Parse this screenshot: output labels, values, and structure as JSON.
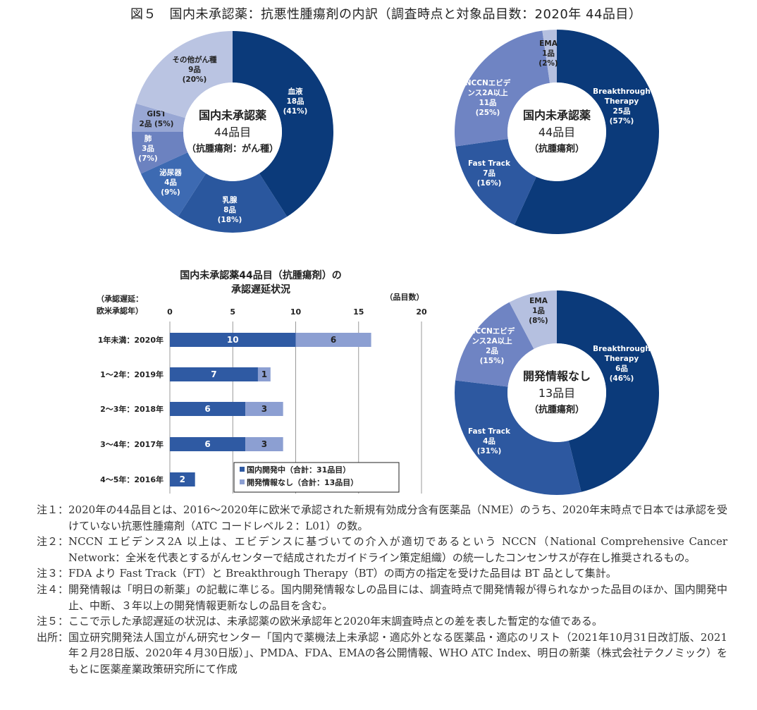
{
  "title": "図５　国内未承認薬：抗悪性腫瘍剤の内訳（調査時点と対象品目数：2020年 44品目）",
  "chart_data": [
    {
      "type": "pie",
      "variant": "donut",
      "center_label": [
        "国内未承認薬",
        "44品目",
        "（抗腫瘍剤：がん種）"
      ],
      "slices": [
        {
          "label": [
            "血液",
            "18品",
            "(41%)"
          ],
          "value": 18,
          "percent": 41,
          "color": "#0b3a7a",
          "text_color": "#ffffff"
        },
        {
          "label": [
            "乳腺",
            "8品",
            "(18%)"
          ],
          "value": 8,
          "percent": 18,
          "color": "#2a579e",
          "text_color": "#ffffff"
        },
        {
          "label": [
            "泌尿器",
            "4品",
            "(9%)"
          ],
          "value": 4,
          "percent": 9,
          "color": "#3d6ab2",
          "text_color": "#ffffff"
        },
        {
          "label": [
            "肺",
            "3品",
            "(7%)"
          ],
          "value": 3,
          "percent": 7,
          "color": "#6c82c0",
          "text_color": "#ffffff"
        },
        {
          "label": [
            "GIST",
            "2品 (5%)"
          ],
          "value": 2,
          "percent": 5,
          "color": "#98a7d4",
          "text_color": "#222222"
        },
        {
          "label": [
            "その他がん種",
            "9品",
            "(20%)"
          ],
          "value": 9,
          "percent": 20,
          "color": "#bac4e2",
          "text_color": "#222222"
        }
      ]
    },
    {
      "type": "pie",
      "variant": "donut",
      "center_label": [
        "国内未承認薬",
        "44品目",
        "（抗腫瘍剤）"
      ],
      "slices": [
        {
          "label": [
            "Breakthrough",
            "Therapy",
            "25品",
            "(57%)"
          ],
          "value": 25,
          "percent": 57,
          "color": "#0b3a7a",
          "text_color": "#ffffff"
        },
        {
          "label": [
            "Fast Track",
            "7品",
            "(16%)"
          ],
          "value": 7,
          "percent": 16,
          "color": "#2d58a0",
          "text_color": "#ffffff"
        },
        {
          "label": [
            "NCCNエビデ",
            "ンス2A以上",
            "11品",
            "(25%)"
          ],
          "value": 11,
          "percent": 25,
          "color": "#6f84c3",
          "text_color": "#ffffff"
        },
        {
          "label": [
            "EMA",
            "1品",
            "(2%)"
          ],
          "value": 1,
          "percent": 2,
          "color": "#b5c0e0",
          "text_color": "#222222"
        }
      ]
    },
    {
      "type": "bar",
      "orientation": "horizontal",
      "stacked": true,
      "title": [
        "国内未承認薬44品目（抗腫瘍剤）の",
        "承認遅延状況"
      ],
      "ylabel": [
        "（承認遅延：",
        "欧米承認年）"
      ],
      "xlabel": "（品目数）",
      "xlim": [
        0,
        20
      ],
      "xticks": [
        0,
        5,
        10,
        15,
        20
      ],
      "grid": true,
      "categories": [
        "1年未満：2020年",
        "1～2年：2019年",
        "2～3年：2018年",
        "3～4年：2017年",
        "4～5年：2016年"
      ],
      "series": [
        {
          "name": "国内開発中（合計：31品目）",
          "values": [
            10,
            7,
            6,
            6,
            2
          ],
          "color": "#2f5aa3",
          "label_color": "#ffffff"
        },
        {
          "name": "開発情報なし（合計：13品目）",
          "values": [
            6,
            1,
            3,
            3,
            0
          ],
          "color": "#8c9fd2",
          "label_color": "#222222"
        }
      ],
      "legend_position": "bottom-right"
    },
    {
      "type": "pie",
      "variant": "donut",
      "center_label": [
        "開発情報なし",
        "13品目",
        "（抗腫瘍剤）"
      ],
      "slices": [
        {
          "label": [
            "Breakthrough",
            "Therapy",
            "6品",
            "(46%)"
          ],
          "value": 6,
          "percent": 46,
          "color": "#0b3a7a",
          "text_color": "#ffffff"
        },
        {
          "label": [
            "Fast Track",
            "4品",
            "(31%)"
          ],
          "value": 4,
          "percent": 31,
          "color": "#2d58a0",
          "text_color": "#ffffff"
        },
        {
          "label": [
            "NCCNエビデ",
            "ンス2A以上",
            "2品",
            "(15%)"
          ],
          "value": 2,
          "percent": 15,
          "color": "#6f84c3",
          "text_color": "#ffffff"
        },
        {
          "label": [
            "EMA",
            "1品",
            "(8%)"
          ],
          "value": 1,
          "percent": 8,
          "color": "#b5c0e0",
          "text_color": "#222222"
        }
      ]
    }
  ],
  "notes": [
    {
      "label": "注１：",
      "text": "2020年の44品目とは、2016～2020年に欧米で承認された新規有効成分含有医薬品（NME）のうち、2020年末時点で日本では承認を受けていない抗悪性腫瘍剤（ATC コードレベル２：L01）の数。"
    },
    {
      "label": "注２：",
      "text": "NCCN エビデンス2A 以上は、エビデンスに基づいての介入が適切であるという NCCN（National Comprehensive Cancer Network：全米を代表とするがんセンターで結成されたガイドライン策定組織）の統一したコンセンサスが存在し推奨されるもの。"
    },
    {
      "label": "注３：",
      "text": "FDA より Fast Track（FT）と Breakthrough Therapy（BT）の両方の指定を受けた品目は BT 品として集計。"
    },
    {
      "label": "注４：",
      "text": "開発情報は「明日の新薬」の記載に準じる。国内開発情報なしの品目には、調査時点で開発情報が得られなかった品目のほか、国内開発中止、中断、３年以上の開発情報更新なしの品目を含む。"
    },
    {
      "label": "注５：",
      "text": "ここで示した承認遅延の状況は、未承認薬の欧米承認年と2020年末調査時点との差を表した暫定的な値である。"
    },
    {
      "label": "出所：",
      "text": "国立研究開発法人国立がん研究センター「国内で薬機法上未承認・適応外となる医薬品・適応のリスト（2021年10月31日改訂版、2021年２月28日版、2020年４月30日版）」、PMDA、FDA、EMAの各公開情報、WHO ATC Index、明日の新薬（株式会社テクノミック）をもとに医薬産業政策研究所にて作成"
    }
  ]
}
